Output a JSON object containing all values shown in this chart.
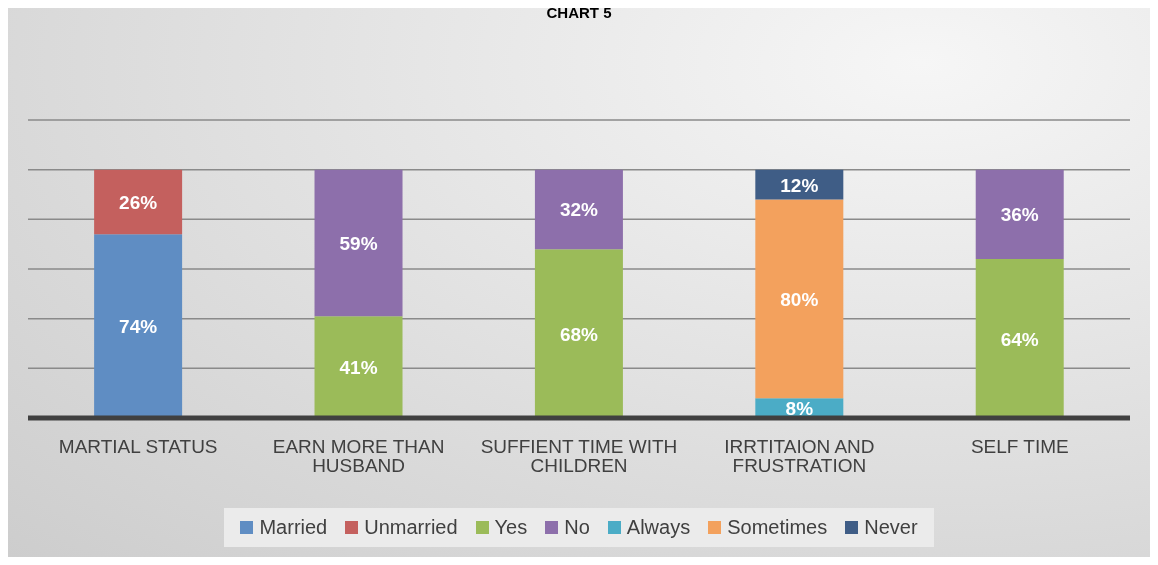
{
  "chart_data": {
    "type": "bar",
    "title": "CHART 5",
    "stacked": true,
    "categories": [
      "MARTIAL STATUS",
      "EARN MORE THAN HUSBAND",
      "SUFFIENT TIME WITH CHILDREN",
      "IRRTITAION AND FRUSTRATION",
      "SELF TIME"
    ],
    "series": [
      {
        "name": "Married",
        "color": "#5f8dc3",
        "values": [
          74,
          null,
          null,
          null,
          null
        ],
        "value_labels": [
          "74%",
          null,
          null,
          null,
          null
        ]
      },
      {
        "name": "Unmarried",
        "color": "#c4605e",
        "values": [
          26,
          null,
          null,
          null,
          null
        ],
        "value_labels": [
          "26%",
          null,
          null,
          null,
          null
        ]
      },
      {
        "name": "Yes",
        "color": "#9bbb59",
        "values": [
          null,
          41,
          68,
          null,
          64
        ],
        "value_labels": [
          null,
          "41%",
          "68%",
          null,
          "64%"
        ]
      },
      {
        "name": "No",
        "color": "#8d6fab",
        "values": [
          null,
          59,
          32,
          null,
          36
        ],
        "value_labels": [
          null,
          "59%",
          "32%",
          null,
          "36%"
        ]
      },
      {
        "name": "Always",
        "color": "#4bacc6",
        "values": [
          null,
          null,
          null,
          8,
          null
        ],
        "value_labels": [
          null,
          null,
          null,
          "8%",
          null
        ]
      },
      {
        "name": "Sometimes",
        "color": "#f3a15d",
        "values": [
          null,
          null,
          null,
          80,
          null
        ],
        "value_labels": [
          null,
          null,
          null,
          "80%",
          null
        ]
      },
      {
        "name": "Never",
        "color": "#3f5d86",
        "values": [
          null,
          null,
          null,
          12,
          null
        ],
        "value_labels": [
          null,
          null,
          null,
          "12%",
          null
        ]
      }
    ],
    "ylim": [
      0,
      120
    ],
    "yticks": [
      {
        "value": 0,
        "label": null
      },
      {
        "value": 20,
        "label": null
      },
      {
        "value": 40,
        "label": null
      },
      {
        "value": 60,
        "label": null
      },
      {
        "value": 80,
        "label": null
      },
      {
        "value": 100,
        "label": null
      },
      {
        "value": 120,
        "label": null
      }
    ],
    "tick_labels": "x",
    "grid": "y",
    "legend": "bottom"
  }
}
